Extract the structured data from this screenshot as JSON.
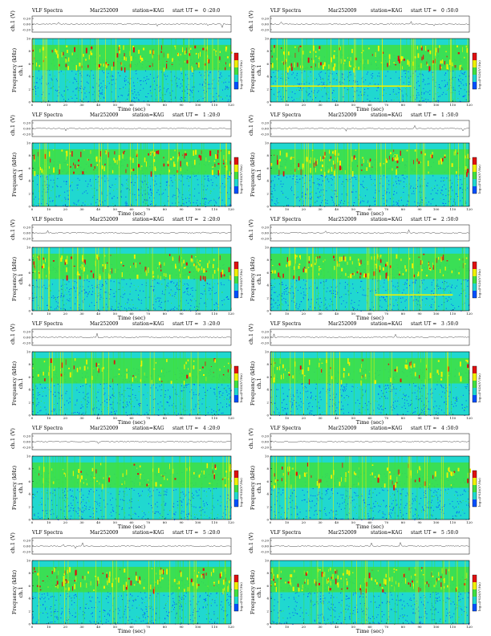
{
  "header": {
    "title": "VLF Spectra",
    "date": "Mar252009",
    "station": "station=KAG",
    "start_prefix": "start  UT ="
  },
  "labels": {
    "ch_label": "ch.1 (V)",
    "ch_short": "ch.1",
    "freq_label": "Frequency (kHz)",
    "time_label": "Time (sec)",
    "cbar_label": "log₁₀(PSD)(V²/Hz)"
  },
  "colors": {
    "blue": "#0050ff",
    "cyan": "#20d8d0",
    "green": "#40e040",
    "yellow": "#f0f000",
    "red": "#e01010"
  },
  "chart_data": [
    {
      "type": "heatmap",
      "title": "VLF Spectra",
      "start_ut": "0 :20:0",
      "xlabel": "Time (sec)",
      "ylabel": "Frequency (kHz)",
      "xlim": [
        0,
        120
      ],
      "ylim": [
        0,
        10
      ],
      "x_ticks": [
        0,
        10,
        20,
        30,
        40,
        50,
        60,
        70,
        80,
        90,
        100,
        110,
        120
      ],
      "y_ticks": [
        0,
        2,
        4,
        6,
        8,
        10
      ],
      "ch_ticks": [
        "0.20",
        "0.00",
        "-0.20"
      ],
      "cbar_ticks": [
        "",
        "",
        ""
      ],
      "bands": [
        {
          "kHz": [
            5,
            9
          ],
          "level": "high"
        }
      ],
      "cross_line": null
    },
    {
      "type": "heatmap",
      "title": "VLF Spectra",
      "start_ut": "0 :50:0",
      "xlabel": "Time (sec)",
      "ylabel": "Frequency (kHz)",
      "xlim": [
        0,
        120
      ],
      "ylim": [
        0,
        10
      ],
      "x_ticks": [
        0,
        10,
        20,
        30,
        40,
        50,
        60,
        70,
        80,
        90,
        100,
        110,
        120
      ],
      "y_ticks": [
        0,
        2,
        4,
        6,
        8,
        10
      ],
      "ch_ticks": [
        "0.20",
        "0.00",
        "-0.20"
      ],
      "cbar_ticks": [
        "",
        "",
        ""
      ],
      "bands": [
        {
          "kHz": [
            5,
            9
          ],
          "level": "high"
        }
      ],
      "cross_line": {
        "kHz": 2.5,
        "t": [
          0,
          85
        ]
      }
    },
    {
      "type": "heatmap",
      "title": "VLF Spectra",
      "start_ut": "1 :20:0",
      "xlabel": "Time (sec)",
      "ylabel": "Frequency (kHz)",
      "xlim": [
        0,
        120
      ],
      "ylim": [
        0,
        10
      ],
      "x_ticks": [
        0,
        10,
        20,
        30,
        40,
        50,
        60,
        70,
        80,
        90,
        100,
        110,
        120
      ],
      "y_ticks": [
        0,
        2,
        4,
        6,
        8,
        10
      ],
      "ch_ticks": [
        "0.20",
        "0.00",
        "-0.20"
      ],
      "cbar_ticks": [
        "",
        "",
        ""
      ],
      "bands": [
        {
          "kHz": [
            5,
            9
          ],
          "level": "high"
        }
      ],
      "cross_line": null
    },
    {
      "type": "heatmap",
      "title": "VLF Spectra",
      "start_ut": "1 :50:0",
      "xlabel": "Time (sec)",
      "ylabel": "Frequency (kHz)",
      "xlim": [
        0,
        120
      ],
      "ylim": [
        0,
        10
      ],
      "x_ticks": [
        0,
        10,
        20,
        30,
        40,
        50,
        60,
        70,
        80,
        90,
        100,
        110,
        120
      ],
      "y_ticks": [
        0,
        2,
        4,
        6,
        8,
        10
      ],
      "ch_ticks": [
        "0.20",
        "0.00",
        "-0.20"
      ],
      "cbar_ticks": [
        "",
        "",
        ""
      ],
      "bands": [
        {
          "kHz": [
            5,
            9
          ],
          "level": "high"
        }
      ],
      "cross_line": null
    },
    {
      "type": "heatmap",
      "title": "VLF Spectra",
      "start_ut": "2 :20:0",
      "xlabel": "Time (sec)",
      "ylabel": "Frequency (kHz)",
      "xlim": [
        0,
        120
      ],
      "ylim": [
        0,
        10
      ],
      "x_ticks": [
        0,
        10,
        20,
        30,
        40,
        50,
        60,
        70,
        80,
        90,
        100,
        110,
        120
      ],
      "y_ticks": [
        0,
        2,
        4,
        6,
        8,
        10
      ],
      "ch_ticks": [
        "0.20",
        "0.00",
        "-0.20"
      ],
      "cbar_ticks": [
        "",
        "",
        ""
      ],
      "bands": [
        {
          "kHz": [
            5,
            9
          ],
          "level": "high"
        }
      ],
      "cross_line": null
    },
    {
      "type": "heatmap",
      "title": "VLF Spectra",
      "start_ut": "2 :50:0",
      "xlabel": "Time (sec)",
      "ylabel": "Frequency (kHz)",
      "xlim": [
        0,
        120
      ],
      "ylim": [
        0,
        10
      ],
      "x_ticks": [
        0,
        10,
        20,
        30,
        40,
        50,
        60,
        70,
        80,
        90,
        100,
        110,
        120
      ],
      "y_ticks": [
        0,
        2,
        4,
        6,
        8,
        10
      ],
      "ch_ticks": [
        "0.20",
        "0.00",
        "-0.20"
      ],
      "cbar_ticks": [
        "",
        "",
        ""
      ],
      "bands": [
        {
          "kHz": [
            5,
            9
          ],
          "level": "high"
        }
      ],
      "cross_line": {
        "kHz": 2.5,
        "t": [
          63,
          110
        ]
      }
    },
    {
      "type": "heatmap",
      "title": "VLF Spectra",
      "start_ut": "3 :20:0",
      "xlabel": "Time (sec)",
      "ylabel": "Frequency (kHz)",
      "xlim": [
        0,
        120
      ],
      "ylim": [
        0,
        10
      ],
      "x_ticks": [
        0,
        10,
        20,
        30,
        40,
        50,
        60,
        70,
        80,
        90,
        100,
        110,
        120
      ],
      "y_ticks": [
        0,
        2,
        4,
        6,
        8,
        10
      ],
      "ch_ticks": [
        "0.20",
        "0.00",
        "-0.20"
      ],
      "cbar_ticks": [
        "",
        "",
        ""
      ],
      "bands": [
        {
          "kHz": [
            5,
            9
          ],
          "level": "medium"
        }
      ],
      "cross_line": null
    },
    {
      "type": "heatmap",
      "title": "VLF Spectra",
      "start_ut": "3 :50:0",
      "xlabel": "Time (sec)",
      "ylabel": "Frequency (kHz)",
      "xlim": [
        0,
        120
      ],
      "ylim": [
        0,
        10
      ],
      "x_ticks": [
        0,
        10,
        20,
        30,
        40,
        50,
        60,
        70,
        80,
        90,
        100,
        110,
        120
      ],
      "y_ticks": [
        0,
        2,
        4,
        6,
        8,
        10
      ],
      "ch_ticks": [
        "0.20",
        "0.00",
        "-0.20"
      ],
      "cbar_ticks": [
        "",
        "",
        ""
      ],
      "bands": [
        {
          "kHz": [
            5,
            9
          ],
          "level": "medium"
        }
      ],
      "cross_line": null
    },
    {
      "type": "heatmap",
      "title": "VLF Spectra",
      "start_ut": "4 :20:0",
      "xlabel": "Time (sec)",
      "ylabel": "Frequency (kHz)",
      "xlim": [
        0,
        120
      ],
      "ylim": [
        0,
        10
      ],
      "x_ticks": [
        0,
        10,
        20,
        30,
        40,
        50,
        60,
        70,
        80,
        90,
        100,
        110,
        120
      ],
      "y_ticks": [
        0,
        2,
        4,
        6,
        8,
        10
      ],
      "ch_ticks": [
        "0.20",
        "0.00",
        "-0.20"
      ],
      "cbar_ticks": [
        "",
        "",
        ""
      ],
      "bands": [
        {
          "kHz": [
            5,
            9
          ],
          "level": "medium"
        }
      ],
      "cross_line": null
    },
    {
      "type": "heatmap",
      "title": "VLF Spectra",
      "start_ut": "4 :50:0",
      "xlabel": "Time (sec)",
      "ylabel": "Frequency (kHz)",
      "xlim": [
        0,
        120
      ],
      "ylim": [
        0,
        10
      ],
      "x_ticks": [
        0,
        10,
        20,
        30,
        40,
        50,
        60,
        70,
        80,
        90,
        100,
        110,
        120
      ],
      "y_ticks": [
        0,
        2,
        4,
        6,
        8,
        10
      ],
      "ch_ticks": [
        "0.20",
        "0.00",
        "-0.20"
      ],
      "cbar_ticks": [
        "",
        "",
        ""
      ],
      "bands": [
        {
          "kHz": [
            5,
            9
          ],
          "level": "medium"
        }
      ],
      "cross_line": null
    },
    {
      "type": "heatmap",
      "title": "VLF Spectra",
      "start_ut": "5 :20:0",
      "xlabel": "Time (sec)",
      "ylabel": "Frequency (kHz)",
      "xlim": [
        0,
        120
      ],
      "ylim": [
        0,
        10
      ],
      "x_ticks": [
        0,
        10,
        20,
        30,
        40,
        50,
        60,
        70,
        80,
        90,
        100,
        110,
        120
      ],
      "y_ticks": [
        0,
        2,
        4,
        6,
        8,
        10
      ],
      "ch_ticks": [
        "0.20",
        "0.00",
        "-0.20"
      ],
      "cbar_ticks": [
        "",
        "",
        ""
      ],
      "bands": [
        {
          "kHz": [
            5,
            9
          ],
          "level": "high"
        }
      ],
      "cross_line": null
    },
    {
      "type": "heatmap",
      "title": "VLF Spectra",
      "start_ut": "5 :50:0",
      "xlabel": "Time (sec)",
      "ylabel": "Frequency (kHz)",
      "xlim": [
        0,
        120
      ],
      "ylim": [
        0,
        10
      ],
      "x_ticks": [
        0,
        10,
        20,
        30,
        40,
        50,
        60,
        70,
        80,
        90,
        100,
        110,
        120
      ],
      "y_ticks": [
        0,
        2,
        4,
        6,
        8,
        10
      ],
      "ch_ticks": [
        "0.20",
        "0.00",
        "-0.20"
      ],
      "cbar_ticks": [
        "",
        "",
        ""
      ],
      "bands": [
        {
          "kHz": [
            5,
            9
          ],
          "level": "high"
        }
      ],
      "cross_line": null
    }
  ]
}
